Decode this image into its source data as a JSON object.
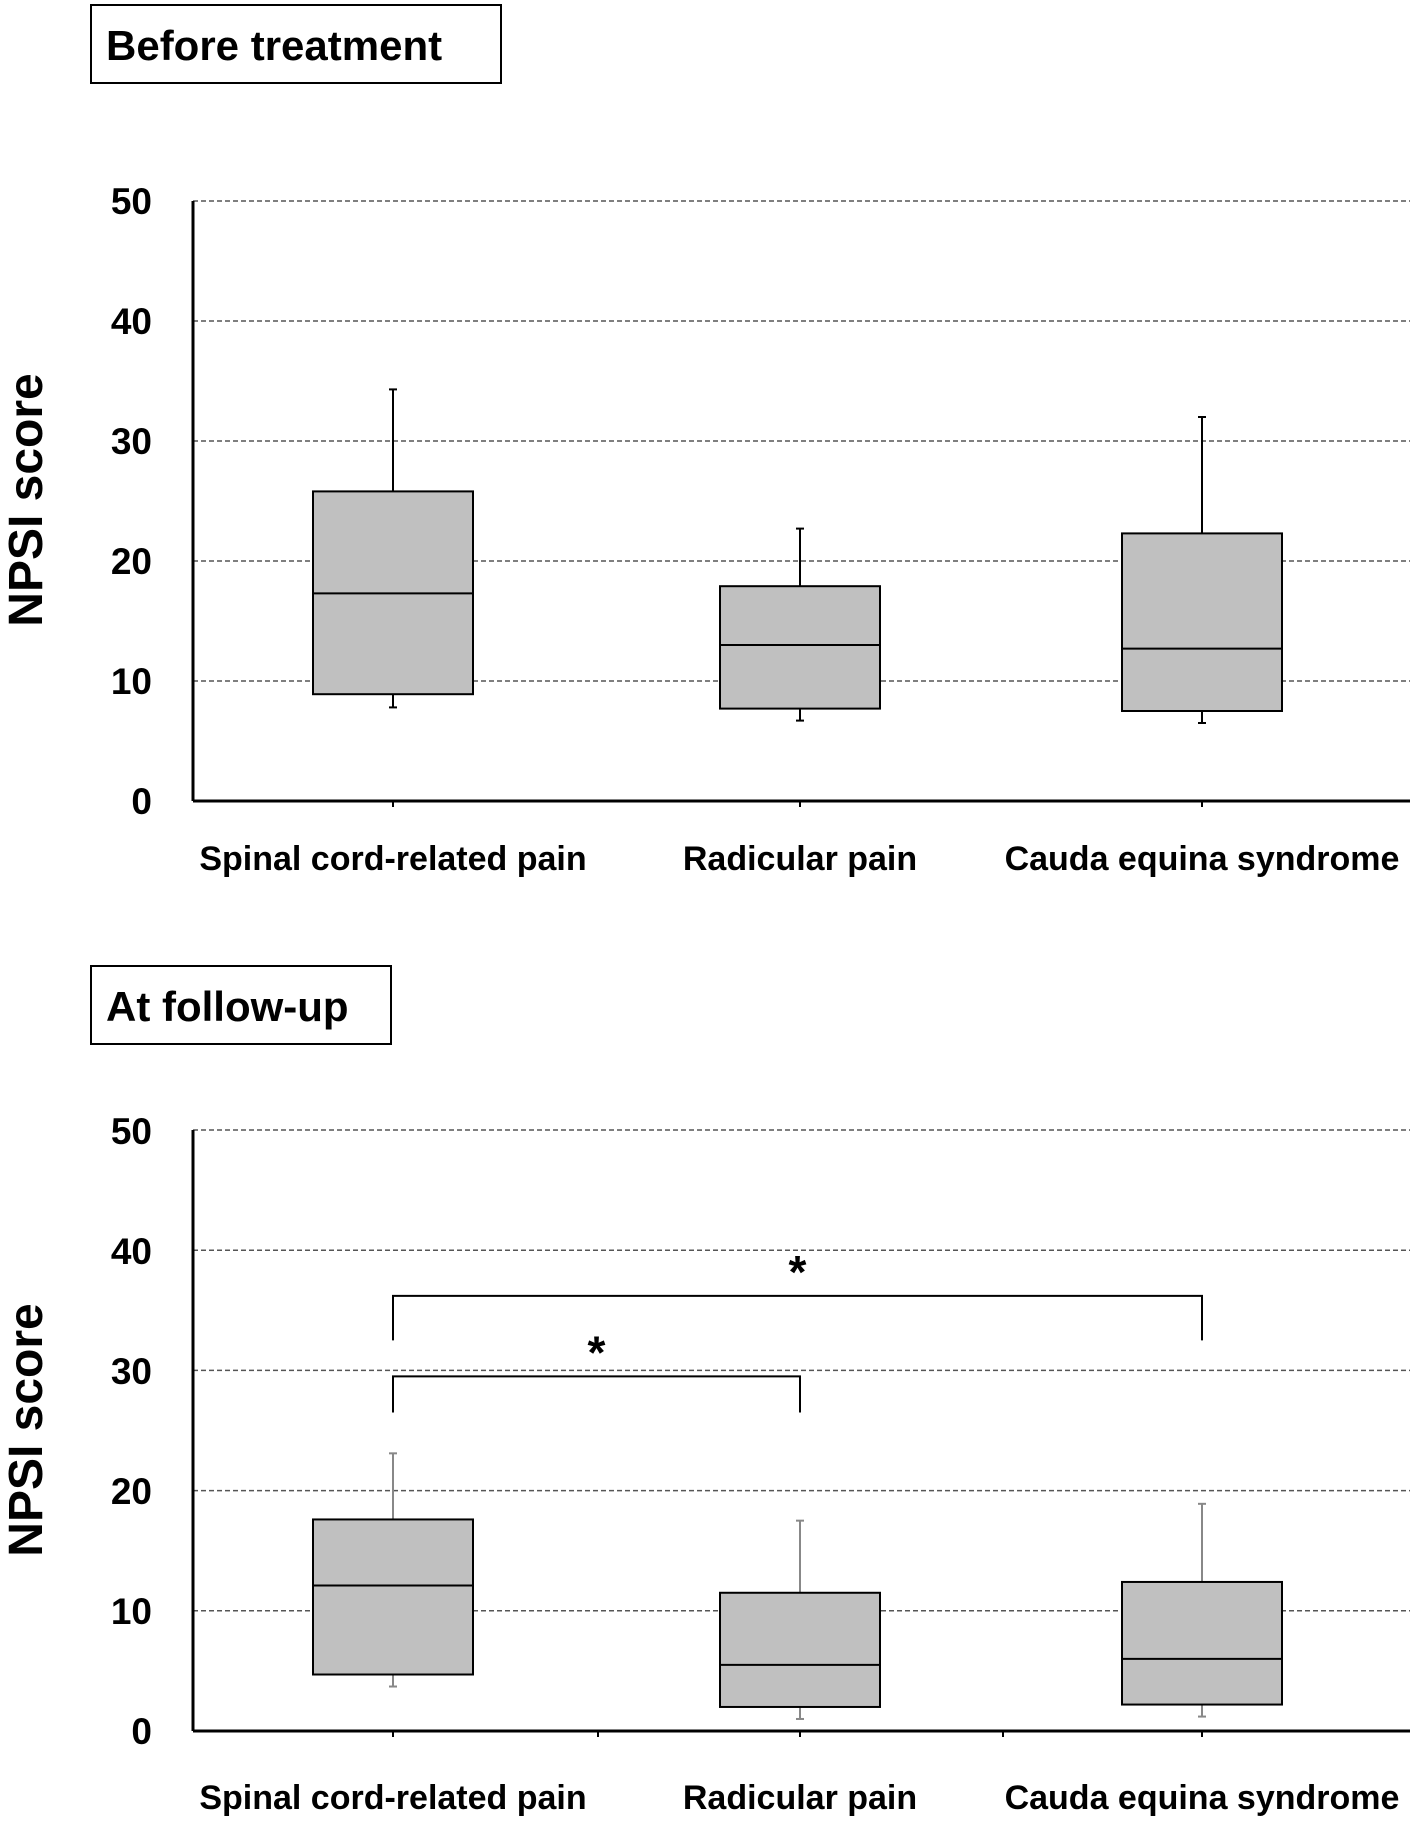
{
  "chart_data": [
    {
      "type": "box",
      "title": "Before treatment",
      "ylabel": "NPSI score",
      "xlabel": "",
      "ylim": [
        0,
        50
      ],
      "yticks": [
        0,
        10,
        20,
        30,
        40,
        50
      ],
      "grid": "horizontal dashed",
      "categories": [
        "Spinal cord-related pain",
        "Radicular pain",
        "Cauda equina syndrome"
      ],
      "boxes": [
        {
          "category": "Spinal cord-related pain",
          "whisker_low": 7.8,
          "q1": 8.9,
          "median": 17.3,
          "q3": 25.8,
          "whisker_high": 34.3
        },
        {
          "category": "Radicular pain",
          "whisker_low": 6.7,
          "q1": 7.7,
          "median": 13.0,
          "q3": 17.9,
          "whisker_high": 22.7
        },
        {
          "category": "Cauda equina syndrome",
          "whisker_low": 6.5,
          "q1": 7.5,
          "median": 12.7,
          "q3": 22.3,
          "whisker_high": 32.0
        }
      ],
      "significance": []
    },
    {
      "type": "box",
      "title": "At follow-up",
      "ylabel": "NPSI score",
      "xlabel": "",
      "ylim": [
        0,
        50
      ],
      "yticks": [
        0,
        10,
        20,
        30,
        40,
        50
      ],
      "grid": "horizontal dashed",
      "categories": [
        "Spinal cord-related pain",
        "Radicular pain",
        "Cauda equina syndrome"
      ],
      "boxes": [
        {
          "category": "Spinal cord-related pain",
          "whisker_low": 3.7,
          "q1": 4.7,
          "median": 12.1,
          "q3": 17.6,
          "whisker_high": 23.1
        },
        {
          "category": "Radicular pain",
          "whisker_low": 1.0,
          "q1": 2.0,
          "median": 5.5,
          "q3": 11.5,
          "whisker_high": 17.5
        },
        {
          "category": "Cauda equina syndrome",
          "whisker_low": 1.2,
          "q1": 2.2,
          "median": 6.0,
          "q3": 12.4,
          "whisker_high": 18.9
        }
      ],
      "significance": [
        {
          "from": "Spinal cord-related pain",
          "to": "Radicular pain",
          "level": 29.5,
          "drop_to": 26.5,
          "label": "*"
        },
        {
          "from": "Spinal cord-related pain",
          "to": "Cauda equina syndrome",
          "level": 36.2,
          "drop_to": 32.5,
          "label": "*"
        }
      ]
    }
  ]
}
